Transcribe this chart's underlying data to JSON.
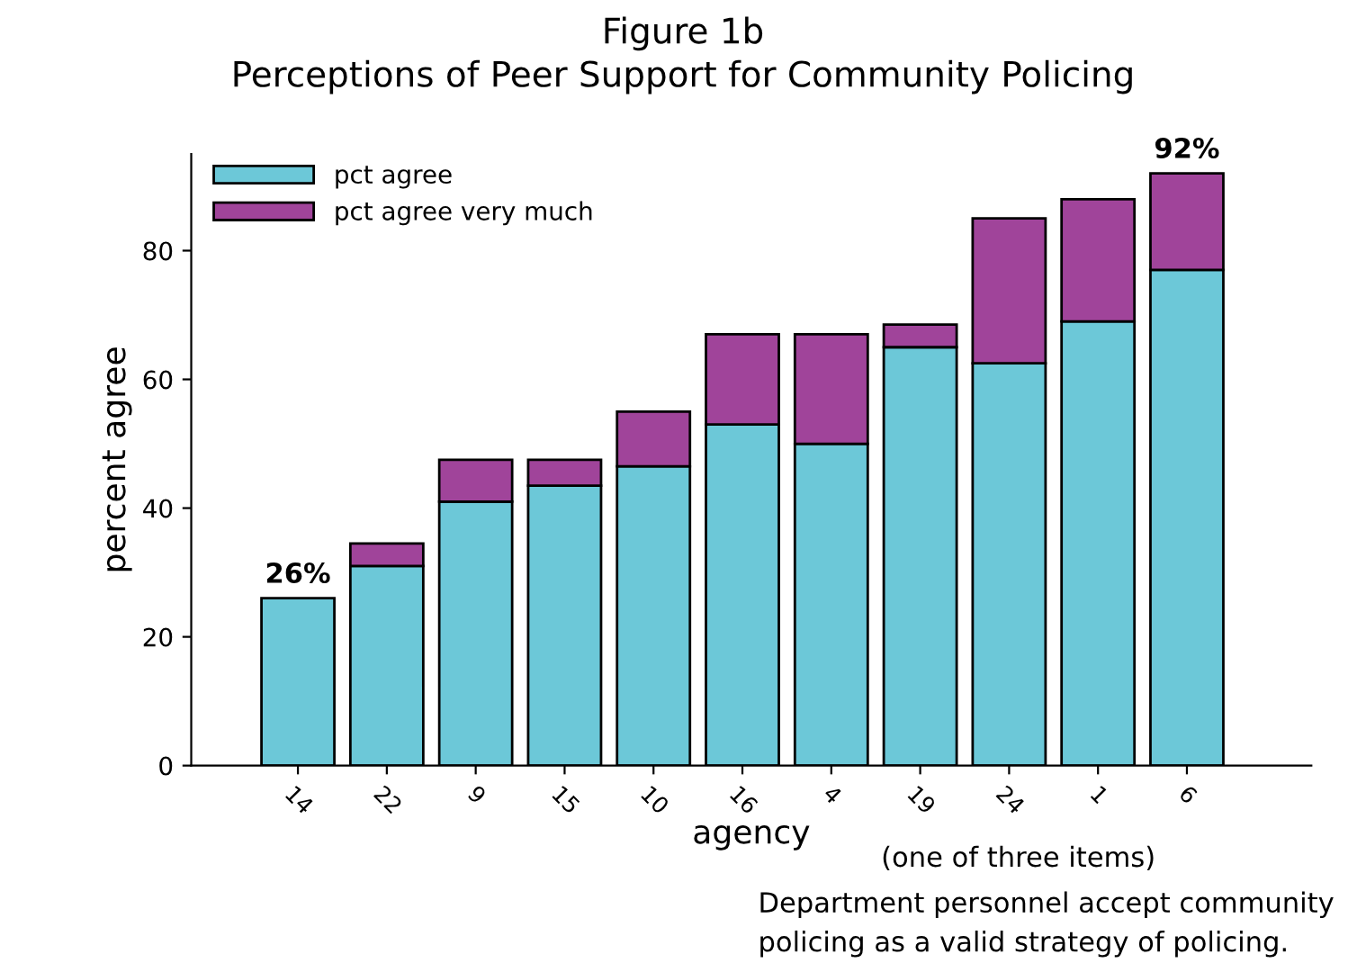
{
  "chart_data": {
    "type": "bar",
    "title": "Figure 1b",
    "subtitle": "Perceptions of Peer Support for Community Policing",
    "xlabel": "agency",
    "ylabel": "percent agree",
    "categories": [
      "14",
      "22",
      "9",
      "15",
      "10",
      "16",
      "4",
      "19",
      "24",
      "1",
      "6"
    ],
    "series": [
      {
        "name": "pct agree",
        "color": "#6cc8d8",
        "values": [
          26,
          31,
          41,
          43.5,
          46.5,
          53,
          50,
          65,
          62.5,
          69,
          77
        ]
      },
      {
        "name": "pct agree very much",
        "color": "#a0449a",
        "values": [
          null,
          3.5,
          6.5,
          4,
          8.5,
          14,
          17,
          3.5,
          22.5,
          19,
          15
        ]
      }
    ],
    "stacked": true,
    "totals": [
      "26%",
      null,
      null,
      null,
      null,
      null,
      null,
      null,
      null,
      null,
      "92%"
    ],
    "ylim": [
      0,
      95
    ],
    "yticks": [
      0,
      20,
      40,
      60,
      80
    ],
    "legend": "top left",
    "grid": false,
    "annotations": [
      "(one of three items)",
      "Department personnel accept community policing as a valid strategy of policing."
    ]
  }
}
